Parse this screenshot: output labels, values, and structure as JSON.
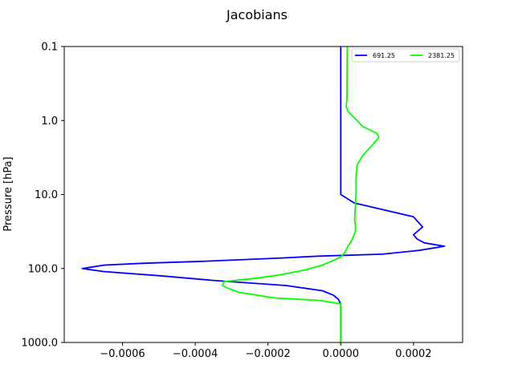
{
  "chart_data": {
    "type": "line",
    "title": "Jacobians",
    "xlabel": "",
    "ylabel": "Pressure [hPa]",
    "xlim": [
      -0.00076,
      0.000335
    ],
    "ylim": [
      0.1,
      1000.0
    ],
    "yscale": "log",
    "y_inverted": true,
    "x_ticks": [
      -0.0006,
      -0.0004,
      -0.0002,
      0.0,
      0.0002
    ],
    "x_tick_labels": [
      "−0.0006",
      "−0.0004",
      "−0.0002",
      "0.0000",
      "0.0002"
    ],
    "y_ticks": [
      0.1,
      1.0,
      10.0,
      100.0,
      1000.0
    ],
    "y_tick_labels": [
      "0.1",
      "1.0",
      "10.0",
      "100.0",
      "1000.0"
    ],
    "grid": false,
    "legend": {
      "placement": "top-right",
      "columns": 2
    },
    "series": [
      {
        "name": "691.25",
        "color": "#0000ff",
        "points": [
          [
            0.0,
            0.1
          ],
          [
            0.0,
            1.0
          ],
          [
            0.0,
            10.0
          ],
          [
            3.7e-05,
            13.0
          ],
          [
            0.0002,
            20.0
          ],
          [
            0.000225,
            27.5
          ],
          [
            0.0002,
            35.0
          ],
          [
            0.00021,
            40.0
          ],
          [
            0.00023,
            45.0
          ],
          [
            0.000285,
            50.0
          ],
          [
            0.000215,
            57.0
          ],
          [
            0.000115,
            64.0
          ],
          [
            -6e-05,
            68.0
          ],
          [
            -0.00016,
            72.0
          ],
          [
            -0.00038,
            80.0
          ],
          [
            -0.00054,
            85.0
          ],
          [
            -0.00065,
            90.0
          ],
          [
            -0.00071,
            100.0
          ],
          [
            -0.00065,
            110.0
          ],
          [
            -0.0005,
            125.0
          ],
          [
            -0.00035,
            145.0
          ],
          [
            -0.00015,
            170.0
          ],
          [
            -5e-05,
            200.0
          ],
          [
            -2e-05,
            230.0
          ],
          [
            -7e-06,
            260.0
          ],
          [
            0.0,
            300.0
          ],
          [
            0.0,
            1000.0
          ]
        ]
      },
      {
        "name": "2381.25",
        "color": "#00ff00",
        "points": [
          [
            1.8e-05,
            0.1
          ],
          [
            1.7e-05,
            0.5
          ],
          [
            1.5e-05,
            0.65
          ],
          [
            2e-05,
            0.75
          ],
          [
            4e-05,
            0.95
          ],
          [
            4.5e-05,
            1.0
          ],
          [
            6e-05,
            1.2
          ],
          [
            0.0001,
            1.5
          ],
          [
            0.000105,
            1.7
          ],
          [
            8.5e-05,
            2.2
          ],
          [
            6e-05,
            3.0
          ],
          [
            4.5e-05,
            4.0
          ],
          [
            4.2e-05,
            6.0
          ],
          [
            4.2e-05,
            10.0
          ],
          [
            4e-05,
            15.0
          ],
          [
            3.8e-05,
            22.0
          ],
          [
            4.1e-05,
            27.0
          ],
          [
            4e-05,
            32.0
          ],
          [
            3e-05,
            42.0
          ],
          [
            2e-05,
            50.0
          ],
          [
            1.2e-05,
            60.0
          ],
          [
            0.0,
            70.0
          ],
          [
            -2.5e-05,
            80.0
          ],
          [
            -5e-05,
            90.0
          ],
          [
            -0.0001,
            105.0
          ],
          [
            -0.00016,
            120.0
          ],
          [
            -0.00023,
            135.0
          ],
          [
            -0.00032,
            150.0
          ],
          [
            -0.000325,
            170.0
          ],
          [
            -0.00031,
            185.0
          ],
          [
            -0.00028,
            210.0
          ],
          [
            -0.00018,
            250.0
          ],
          [
            -6e-05,
            270.0
          ],
          [
            0.0,
            300.0
          ],
          [
            0.0,
            1000.0
          ]
        ]
      }
    ]
  }
}
